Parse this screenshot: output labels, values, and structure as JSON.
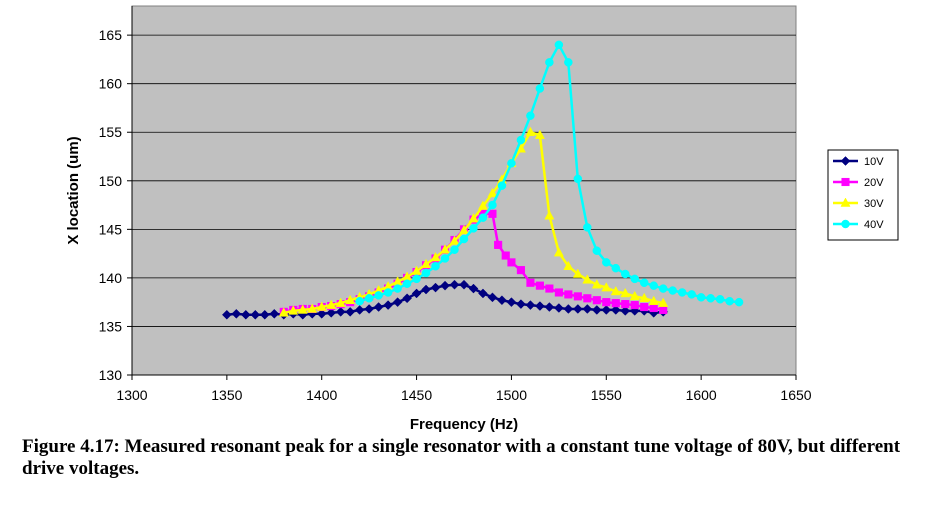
{
  "caption": "Figure 4.17: Measured resonant peak for a single resonator with a constant tune voltage of 80V, but different drive voltages.",
  "chart_data": {
    "type": "line",
    "title": "",
    "xlabel": "Frequency (Hz)",
    "ylabel": "X location (um)",
    "xlim": [
      1300,
      1650
    ],
    "ylim": [
      130,
      168
    ],
    "xticks": [
      1300,
      1350,
      1400,
      1450,
      1500,
      1550,
      1600,
      1650
    ],
    "yticks": [
      130,
      135,
      140,
      145,
      150,
      155,
      160,
      165
    ],
    "grid": "horizontal",
    "plot_background": "#c0c0c0",
    "legend_position": "right",
    "series": [
      {
        "name": "10V",
        "color": "#000080",
        "marker": "diamond",
        "x": [
          1350,
          1355,
          1360,
          1365,
          1370,
          1375,
          1380,
          1385,
          1390,
          1395,
          1400,
          1405,
          1410,
          1415,
          1420,
          1425,
          1430,
          1435,
          1440,
          1445,
          1450,
          1455,
          1460,
          1465,
          1470,
          1475,
          1480,
          1485,
          1490,
          1495,
          1500,
          1505,
          1510,
          1515,
          1520,
          1525,
          1530,
          1535,
          1540,
          1545,
          1550,
          1555,
          1560,
          1565,
          1570,
          1575,
          1580
        ],
        "y": [
          136.2,
          136.3,
          136.2,
          136.2,
          136.2,
          136.3,
          136.2,
          136.3,
          136.2,
          136.3,
          136.3,
          136.4,
          136.5,
          136.5,
          136.7,
          136.8,
          137.0,
          137.2,
          137.5,
          137.9,
          138.4,
          138.8,
          139.0,
          139.2,
          139.3,
          139.3,
          138.9,
          138.4,
          138.0,
          137.7,
          137.5,
          137.3,
          137.2,
          137.1,
          137.0,
          136.9,
          136.8,
          136.8,
          136.8,
          136.7,
          136.7,
          136.7,
          136.6,
          136.6,
          136.6,
          136.4,
          136.5
        ]
      },
      {
        "name": "20V",
        "color": "#ff00ff",
        "marker": "square",
        "x": [
          1380,
          1385,
          1390,
          1395,
          1400,
          1405,
          1410,
          1415,
          1420,
          1425,
          1430,
          1435,
          1440,
          1445,
          1450,
          1455,
          1460,
          1465,
          1470,
          1475,
          1480,
          1485,
          1490,
          1493,
          1497,
          1500,
          1505,
          1510,
          1515,
          1520,
          1525,
          1530,
          1535,
          1540,
          1545,
          1550,
          1555,
          1560,
          1565,
          1570,
          1575,
          1580
        ],
        "y": [
          136.5,
          136.7,
          136.8,
          136.8,
          137.0,
          137.1,
          137.3,
          137.5,
          137.8,
          138.1,
          138.5,
          138.9,
          139.4,
          140.0,
          140.6,
          141.3,
          142.0,
          142.9,
          143.9,
          145.0,
          146.0,
          146.6,
          146.6,
          143.4,
          142.3,
          141.6,
          140.8,
          139.5,
          139.2,
          138.9,
          138.5,
          138.3,
          138.1,
          137.9,
          137.7,
          137.5,
          137.4,
          137.3,
          137.2,
          137.0,
          136.9,
          136.7
        ]
      },
      {
        "name": "30V",
        "color": "#ffff00",
        "marker": "triangle",
        "x": [
          1380,
          1385,
          1390,
          1395,
          1400,
          1405,
          1410,
          1415,
          1420,
          1425,
          1430,
          1435,
          1440,
          1445,
          1450,
          1455,
          1460,
          1465,
          1470,
          1475,
          1480,
          1485,
          1490,
          1495,
          1500,
          1505,
          1510,
          1515,
          1520,
          1525,
          1530,
          1535,
          1540,
          1545,
          1550,
          1555,
          1560,
          1565,
          1570,
          1575,
          1580
        ],
        "y": [
          136.4,
          136.6,
          136.7,
          136.8,
          137.0,
          137.2,
          137.4,
          137.7,
          138.0,
          138.3,
          138.7,
          139.1,
          139.6,
          140.1,
          140.7,
          141.4,
          142.1,
          142.9,
          143.8,
          144.9,
          146.1,
          147.4,
          148.7,
          150.1,
          151.8,
          153.3,
          155.0,
          154.7,
          146.4,
          142.6,
          141.2,
          140.4,
          139.8,
          139.3,
          139.0,
          138.6,
          138.4,
          138.1,
          137.9,
          137.6,
          137.4
        ]
      },
      {
        "name": "40V",
        "color": "#00ffff",
        "marker": "circle",
        "x": [
          1420,
          1425,
          1430,
          1435,
          1440,
          1445,
          1450,
          1455,
          1460,
          1465,
          1470,
          1475,
          1480,
          1485,
          1490,
          1495,
          1500,
          1505,
          1510,
          1515,
          1520,
          1525,
          1530,
          1535,
          1540,
          1545,
          1550,
          1555,
          1560,
          1565,
          1570,
          1575,
          1580,
          1585,
          1590,
          1595,
          1600,
          1605,
          1610,
          1615,
          1620
        ],
        "y": [
          137.6,
          137.9,
          138.2,
          138.5,
          138.9,
          139.4,
          139.9,
          140.5,
          141.2,
          142.0,
          142.9,
          144.0,
          145.1,
          146.2,
          147.5,
          149.5,
          151.8,
          154.2,
          156.7,
          159.5,
          162.2,
          164.0,
          162.2,
          150.2,
          145.2,
          142.8,
          141.6,
          141.0,
          140.4,
          139.9,
          139.5,
          139.2,
          138.9,
          138.7,
          138.5,
          138.3,
          138.0,
          137.9,
          137.8,
          137.6,
          137.5
        ]
      }
    ]
  }
}
